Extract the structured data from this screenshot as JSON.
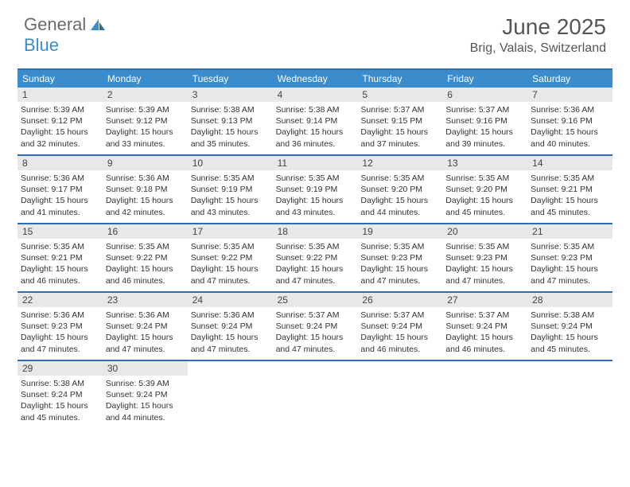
{
  "logo": {
    "text1": "General",
    "text2": "Blue"
  },
  "title": "June 2025",
  "location": "Brig, Valais, Switzerland",
  "colors": {
    "header_bg": "#3a8ccc",
    "header_text": "#ffffff",
    "border": "#2d6fa8",
    "daynum_bg": "#e8e8e8",
    "body_text": "#333333",
    "title_text": "#555555"
  },
  "day_headers": [
    "Sunday",
    "Monday",
    "Tuesday",
    "Wednesday",
    "Thursday",
    "Friday",
    "Saturday"
  ],
  "weeks": [
    [
      {
        "n": "1",
        "sr": "5:39 AM",
        "ss": "9:12 PM",
        "dl": "15 hours and 32 minutes."
      },
      {
        "n": "2",
        "sr": "5:39 AM",
        "ss": "9:12 PM",
        "dl": "15 hours and 33 minutes."
      },
      {
        "n": "3",
        "sr": "5:38 AM",
        "ss": "9:13 PM",
        "dl": "15 hours and 35 minutes."
      },
      {
        "n": "4",
        "sr": "5:38 AM",
        "ss": "9:14 PM",
        "dl": "15 hours and 36 minutes."
      },
      {
        "n": "5",
        "sr": "5:37 AM",
        "ss": "9:15 PM",
        "dl": "15 hours and 37 minutes."
      },
      {
        "n": "6",
        "sr": "5:37 AM",
        "ss": "9:16 PM",
        "dl": "15 hours and 39 minutes."
      },
      {
        "n": "7",
        "sr": "5:36 AM",
        "ss": "9:16 PM",
        "dl": "15 hours and 40 minutes."
      }
    ],
    [
      {
        "n": "8",
        "sr": "5:36 AM",
        "ss": "9:17 PM",
        "dl": "15 hours and 41 minutes."
      },
      {
        "n": "9",
        "sr": "5:36 AM",
        "ss": "9:18 PM",
        "dl": "15 hours and 42 minutes."
      },
      {
        "n": "10",
        "sr": "5:35 AM",
        "ss": "9:19 PM",
        "dl": "15 hours and 43 minutes."
      },
      {
        "n": "11",
        "sr": "5:35 AM",
        "ss": "9:19 PM",
        "dl": "15 hours and 43 minutes."
      },
      {
        "n": "12",
        "sr": "5:35 AM",
        "ss": "9:20 PM",
        "dl": "15 hours and 44 minutes."
      },
      {
        "n": "13",
        "sr": "5:35 AM",
        "ss": "9:20 PM",
        "dl": "15 hours and 45 minutes."
      },
      {
        "n": "14",
        "sr": "5:35 AM",
        "ss": "9:21 PM",
        "dl": "15 hours and 45 minutes."
      }
    ],
    [
      {
        "n": "15",
        "sr": "5:35 AM",
        "ss": "9:21 PM",
        "dl": "15 hours and 46 minutes."
      },
      {
        "n": "16",
        "sr": "5:35 AM",
        "ss": "9:22 PM",
        "dl": "15 hours and 46 minutes."
      },
      {
        "n": "17",
        "sr": "5:35 AM",
        "ss": "9:22 PM",
        "dl": "15 hours and 47 minutes."
      },
      {
        "n": "18",
        "sr": "5:35 AM",
        "ss": "9:22 PM",
        "dl": "15 hours and 47 minutes."
      },
      {
        "n": "19",
        "sr": "5:35 AM",
        "ss": "9:23 PM",
        "dl": "15 hours and 47 minutes."
      },
      {
        "n": "20",
        "sr": "5:35 AM",
        "ss": "9:23 PM",
        "dl": "15 hours and 47 minutes."
      },
      {
        "n": "21",
        "sr": "5:35 AM",
        "ss": "9:23 PM",
        "dl": "15 hours and 47 minutes."
      }
    ],
    [
      {
        "n": "22",
        "sr": "5:36 AM",
        "ss": "9:23 PM",
        "dl": "15 hours and 47 minutes."
      },
      {
        "n": "23",
        "sr": "5:36 AM",
        "ss": "9:24 PM",
        "dl": "15 hours and 47 minutes."
      },
      {
        "n": "24",
        "sr": "5:36 AM",
        "ss": "9:24 PM",
        "dl": "15 hours and 47 minutes."
      },
      {
        "n": "25",
        "sr": "5:37 AM",
        "ss": "9:24 PM",
        "dl": "15 hours and 47 minutes."
      },
      {
        "n": "26",
        "sr": "5:37 AM",
        "ss": "9:24 PM",
        "dl": "15 hours and 46 minutes."
      },
      {
        "n": "27",
        "sr": "5:37 AM",
        "ss": "9:24 PM",
        "dl": "15 hours and 46 minutes."
      },
      {
        "n": "28",
        "sr": "5:38 AM",
        "ss": "9:24 PM",
        "dl": "15 hours and 45 minutes."
      }
    ],
    [
      {
        "n": "29",
        "sr": "5:38 AM",
        "ss": "9:24 PM",
        "dl": "15 hours and 45 minutes."
      },
      {
        "n": "30",
        "sr": "5:39 AM",
        "ss": "9:24 PM",
        "dl": "15 hours and 44 minutes."
      },
      null,
      null,
      null,
      null,
      null
    ]
  ],
  "labels": {
    "sunrise": "Sunrise: ",
    "sunset": "Sunset: ",
    "daylight": "Daylight: "
  }
}
